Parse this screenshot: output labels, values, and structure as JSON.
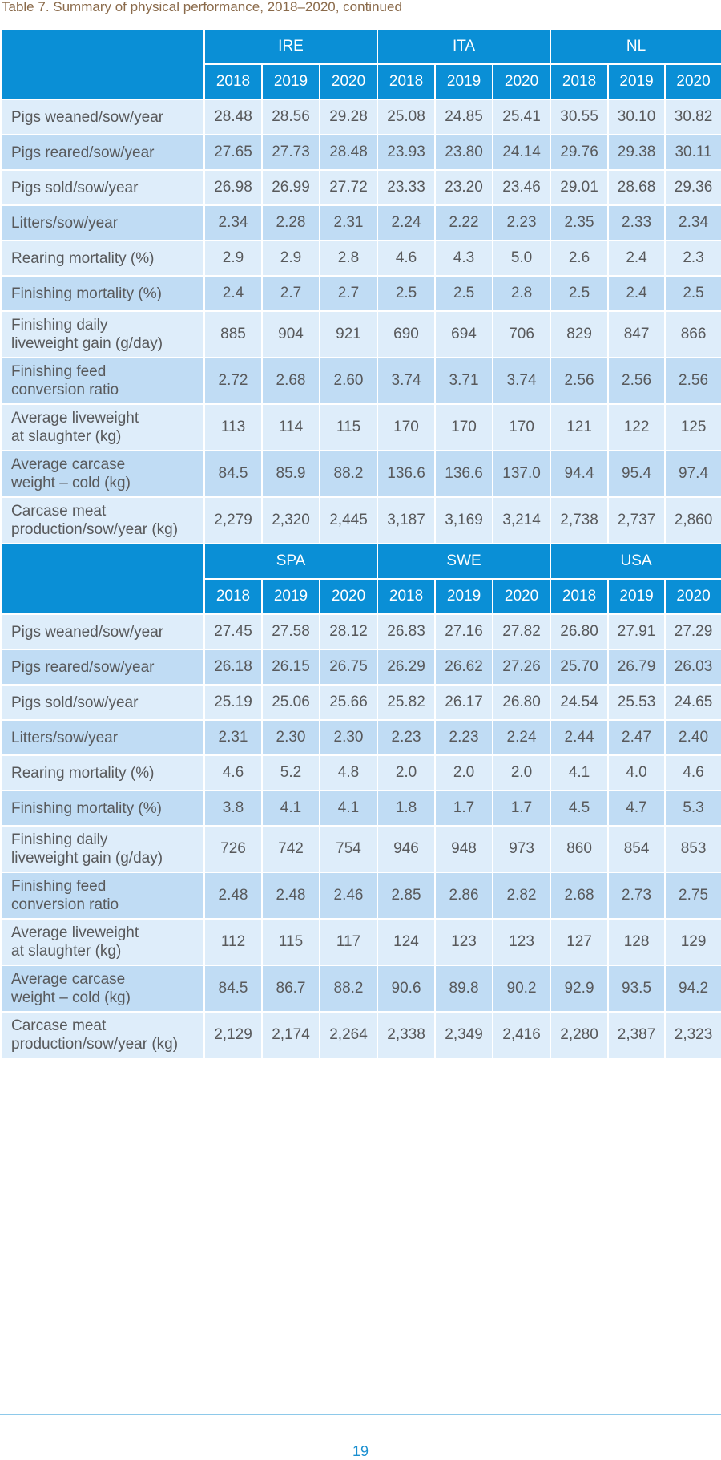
{
  "caption": "Table 7. Summary of physical performance, 2018–2020, continued",
  "page_number": "19",
  "metric_labels": [
    [
      "Pigs weaned/sow/year"
    ],
    [
      "Pigs reared/sow/year"
    ],
    [
      "Pigs sold/sow/year"
    ],
    [
      "Litters/sow/year"
    ],
    [
      "Rearing mortality (%)"
    ],
    [
      "Finishing mortality (%)"
    ],
    [
      "Finishing daily",
      "liveweight gain (g/day)"
    ],
    [
      "Finishing feed",
      "conversion ratio"
    ],
    [
      "Average liveweight",
      "at slaughter (kg)"
    ],
    [
      "Average carcase",
      "weight – cold (kg)"
    ],
    [
      "Carcase meat",
      "production/sow/year (kg)"
    ]
  ],
  "blocks": [
    {
      "countries": [
        "IRE",
        "ITA",
        "NL"
      ],
      "years": [
        "2018",
        "2019",
        "2020",
        "2018",
        "2019",
        "2020",
        "2018",
        "2019",
        "2020"
      ],
      "rows": [
        [
          "28.48",
          "28.56",
          "29.28",
          "25.08",
          "24.85",
          "25.41",
          "30.55",
          "30.10",
          "30.82"
        ],
        [
          "27.65",
          "27.73",
          "28.48",
          "23.93",
          "23.80",
          "24.14",
          "29.76",
          "29.38",
          "30.11"
        ],
        [
          "26.98",
          "26.99",
          "27.72",
          "23.33",
          "23.20",
          "23.46",
          "29.01",
          "28.68",
          "29.36"
        ],
        [
          "2.34",
          "2.28",
          "2.31",
          "2.24",
          "2.22",
          "2.23",
          "2.35",
          "2.33",
          "2.34"
        ],
        [
          "2.9",
          "2.9",
          "2.8",
          "4.6",
          "4.3",
          "5.0",
          "2.6",
          "2.4",
          "2.3"
        ],
        [
          "2.4",
          "2.7",
          "2.7",
          "2.5",
          "2.5",
          "2.8",
          "2.5",
          "2.4",
          "2.5"
        ],
        [
          "885",
          "904",
          "921",
          "690",
          "694",
          "706",
          "829",
          "847",
          "866"
        ],
        [
          "2.72",
          "2.68",
          "2.60",
          "3.74",
          "3.71",
          "3.74",
          "2.56",
          "2.56",
          "2.56"
        ],
        [
          "113",
          "114",
          "115",
          "170",
          "170",
          "170",
          "121",
          "122",
          "125"
        ],
        [
          "84.5",
          "85.9",
          "88.2",
          "136.6",
          "136.6",
          "137.0",
          "94.4",
          "95.4",
          "97.4"
        ],
        [
          "2,279",
          "2,320",
          "2,445",
          "3,187",
          "3,169",
          "3,214",
          "2,738",
          "2,737",
          "2,860"
        ]
      ]
    },
    {
      "countries": [
        "SPA",
        "SWE",
        "USA"
      ],
      "years": [
        "2018",
        "2019",
        "2020",
        "2018",
        "2019",
        "2020",
        "2018",
        "2019",
        "2020"
      ],
      "rows": [
        [
          "27.45",
          "27.58",
          "28.12",
          "26.83",
          "27.16",
          "27.82",
          "26.80",
          "27.91",
          "27.29"
        ],
        [
          "26.18",
          "26.15",
          "26.75",
          "26.29",
          "26.62",
          "27.26",
          "25.70",
          "26.79",
          "26.03"
        ],
        [
          "25.19",
          "25.06",
          "25.66",
          "25.82",
          "26.17",
          "26.80",
          "24.54",
          "25.53",
          "24.65"
        ],
        [
          "2.31",
          "2.30",
          "2.30",
          "2.23",
          "2.23",
          "2.24",
          "2.44",
          "2.47",
          "2.40"
        ],
        [
          "4.6",
          "5.2",
          "4.8",
          "2.0",
          "2.0",
          "2.0",
          "4.1",
          "4.0",
          "4.6"
        ],
        [
          "3.8",
          "4.1",
          "4.1",
          "1.8",
          "1.7",
          "1.7",
          "4.5",
          "4.7",
          "5.3"
        ],
        [
          "726",
          "742",
          "754",
          "946",
          "948",
          "973",
          "860",
          "854",
          "853"
        ],
        [
          "2.48",
          "2.48",
          "2.46",
          "2.85",
          "2.86",
          "2.82",
          "2.68",
          "2.73",
          "2.75"
        ],
        [
          "112",
          "115",
          "117",
          "124",
          "123",
          "123",
          "127",
          "128",
          "129"
        ],
        [
          "84.5",
          "86.7",
          "88.2",
          "90.6",
          "89.8",
          "90.2",
          "92.9",
          "93.5",
          "94.2"
        ],
        [
          "2,129",
          "2,174",
          "2,264",
          "2,338",
          "2,349",
          "2,416",
          "2,280",
          "2,387",
          "2,323"
        ]
      ]
    }
  ],
  "colors": {
    "header_blue": "#0a8fd6",
    "row_light": "#deedfa",
    "row_dark": "#c0dcf4",
    "caption_brown": "#8a6a4a",
    "page_number_blue": "#1a8fd0"
  }
}
